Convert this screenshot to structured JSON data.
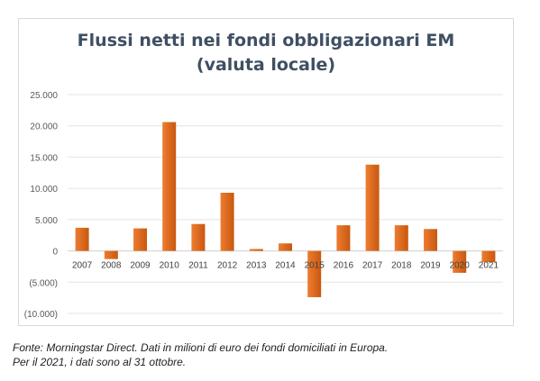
{
  "chart_data": {
    "type": "bar",
    "title": [
      "Flussi netti nei fondi obbligazionari EM",
      "(valuta locale)"
    ],
    "categories": [
      "2007",
      "2008",
      "2009",
      "2010",
      "2011",
      "2012",
      "2013",
      "2014",
      "2015",
      "2016",
      "2017",
      "2018",
      "2019",
      "2020",
      "2021"
    ],
    "values": [
      3700,
      -1300,
      3600,
      20600,
      4300,
      9300,
      300,
      1200,
      -7400,
      4100,
      13800,
      4100,
      3500,
      -3500,
      -1800
    ],
    "ylim": [
      -10000,
      25000
    ],
    "yticks": [
      25000,
      20000,
      15000,
      10000,
      5000,
      0,
      -5000,
      -10000
    ],
    "ytick_labels": [
      "25.000",
      "20.000",
      "15.000",
      "10.000",
      "5.000",
      "0",
      "(5.000)",
      "(10.000)"
    ],
    "grid": true,
    "bar_color": "#ed7d31",
    "bar_color_dark": "#c8580f",
    "xlabel": "",
    "ylabel": ""
  },
  "footnote": [
    "Fonte: Morningstar Direct. Dati in milioni di euro dei fondi domiciliati in Europa.",
    "Per il 2021, i dati sono al 31 ottobre."
  ]
}
